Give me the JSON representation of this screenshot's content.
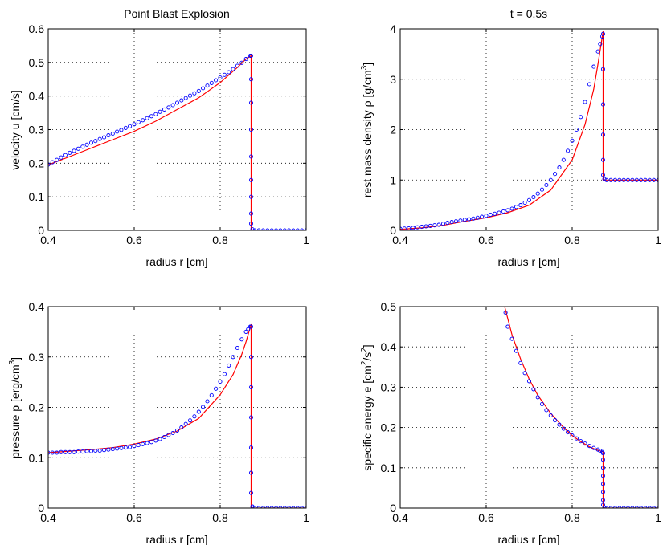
{
  "chart_data": [
    {
      "type": "line",
      "title": "Point Blast Explosion",
      "xlabel": "radius r [cm]",
      "ylabel": "velocity u [cm/s]",
      "xlim": [
        0.4,
        1.0
      ],
      "ylim": [
        0,
        0.6
      ],
      "xticks": [
        "0.4",
        "0.6",
        "0.8",
        "1"
      ],
      "yticks": [
        "0",
        "0.1",
        "0.2",
        "0.3",
        "0.4",
        "0.5",
        "0.6"
      ],
      "grid": true,
      "series": [
        {
          "style": "line",
          "color": "#ff0000",
          "x": [
            0.4,
            0.45,
            0.5,
            0.55,
            0.6,
            0.65,
            0.7,
            0.75,
            0.8,
            0.84,
            0.86,
            0.872,
            0.872,
            0.88,
            0.9,
            0.95,
            1.0
          ],
          "y": [
            0.195,
            0.22,
            0.245,
            0.27,
            0.295,
            0.325,
            0.36,
            0.395,
            0.44,
            0.485,
            0.51,
            0.52,
            0.0,
            0.0,
            0.0,
            0.0,
            0.0
          ]
        },
        {
          "style": "markers",
          "marker": "circle",
          "color": "#0000ff",
          "x": [
            0.4,
            0.41,
            0.42,
            0.43,
            0.44,
            0.45,
            0.46,
            0.47,
            0.48,
            0.49,
            0.5,
            0.51,
            0.52,
            0.53,
            0.54,
            0.55,
            0.56,
            0.57,
            0.58,
            0.59,
            0.6,
            0.61,
            0.62,
            0.63,
            0.64,
            0.65,
            0.66,
            0.67,
            0.68,
            0.69,
            0.7,
            0.71,
            0.72,
            0.73,
            0.74,
            0.75,
            0.76,
            0.77,
            0.78,
            0.79,
            0.8,
            0.81,
            0.82,
            0.83,
            0.84,
            0.85,
            0.86,
            0.87,
            0.872,
            0.872,
            0.872,
            0.872,
            0.872,
            0.872,
            0.872,
            0.872,
            0.872,
            0.875,
            0.88,
            0.89,
            0.9,
            0.91,
            0.92,
            0.93,
            0.94,
            0.95,
            0.96,
            0.97,
            0.98,
            0.99,
            1.0
          ],
          "y": [
            0.196,
            0.203,
            0.21,
            0.217,
            0.224,
            0.231,
            0.237,
            0.243,
            0.249,
            0.255,
            0.261,
            0.266,
            0.272,
            0.277,
            0.283,
            0.288,
            0.294,
            0.299,
            0.305,
            0.31,
            0.316,
            0.322,
            0.328,
            0.334,
            0.34,
            0.346,
            0.353,
            0.36,
            0.366,
            0.373,
            0.38,
            0.387,
            0.394,
            0.401,
            0.408,
            0.415,
            0.423,
            0.431,
            0.439,
            0.447,
            0.455,
            0.463,
            0.471,
            0.48,
            0.49,
            0.499,
            0.51,
            0.52,
            0.52,
            0.45,
            0.38,
            0.3,
            0.22,
            0.15,
            0.1,
            0.05,
            0.02,
            0.003,
            0.0,
            0.0,
            0.0,
            0.0,
            0.0,
            0.0,
            0.0,
            0.0,
            0.0,
            0.0,
            0.0,
            0.0,
            0.0
          ]
        }
      ]
    },
    {
      "type": "line",
      "title": "t = 0.5s",
      "xlabel": "radius r [cm]",
      "ylabel": "rest mass density ρ [g/cm3]",
      "xlim": [
        0.4,
        1.0
      ],
      "ylim": [
        0,
        4
      ],
      "xticks": [
        "0.4",
        "0.6",
        "0.8",
        "1"
      ],
      "yticks": [
        "0",
        "1",
        "2",
        "3",
        "4"
      ],
      "grid": true,
      "series": [
        {
          "style": "line",
          "color": "#ff0000",
          "x": [
            0.4,
            0.45,
            0.5,
            0.55,
            0.6,
            0.65,
            0.7,
            0.75,
            0.8,
            0.83,
            0.85,
            0.86,
            0.872,
            0.872,
            0.88,
            0.9,
            0.95,
            1.0
          ],
          "y": [
            0.02,
            0.05,
            0.1,
            0.18,
            0.25,
            0.35,
            0.5,
            0.8,
            1.4,
            2.1,
            2.8,
            3.3,
            3.95,
            1.0,
            1.0,
            1.0,
            1.0,
            1.0
          ]
        },
        {
          "style": "markers",
          "marker": "circle",
          "color": "#0000ff",
          "x": [
            0.4,
            0.41,
            0.42,
            0.43,
            0.44,
            0.45,
            0.46,
            0.47,
            0.48,
            0.49,
            0.5,
            0.51,
            0.52,
            0.53,
            0.54,
            0.55,
            0.56,
            0.57,
            0.58,
            0.59,
            0.6,
            0.61,
            0.62,
            0.63,
            0.64,
            0.65,
            0.66,
            0.67,
            0.68,
            0.69,
            0.7,
            0.71,
            0.72,
            0.73,
            0.74,
            0.75,
            0.76,
            0.77,
            0.78,
            0.79,
            0.8,
            0.81,
            0.82,
            0.83,
            0.84,
            0.85,
            0.86,
            0.865,
            0.87,
            0.872,
            0.872,
            0.872,
            0.872,
            0.872,
            0.872,
            0.875,
            0.88,
            0.89,
            0.9,
            0.91,
            0.92,
            0.93,
            0.94,
            0.95,
            0.96,
            0.97,
            0.98,
            0.99,
            1.0
          ],
          "y": [
            0.03,
            0.035,
            0.04,
            0.05,
            0.06,
            0.07,
            0.08,
            0.09,
            0.1,
            0.11,
            0.13,
            0.15,
            0.165,
            0.18,
            0.195,
            0.21,
            0.22,
            0.235,
            0.25,
            0.27,
            0.29,
            0.31,
            0.33,
            0.35,
            0.375,
            0.4,
            0.43,
            0.465,
            0.5,
            0.55,
            0.6,
            0.66,
            0.73,
            0.81,
            0.9,
            1.0,
            1.12,
            1.25,
            1.4,
            1.58,
            1.78,
            2.0,
            2.25,
            2.55,
            2.9,
            3.25,
            3.55,
            3.7,
            3.85,
            3.9,
            3.2,
            2.5,
            1.9,
            1.4,
            1.1,
            1.02,
            1.0,
            1.0,
            1.0,
            1.0,
            1.0,
            1.0,
            1.0,
            1.0,
            1.0,
            1.0,
            1.0,
            1.0,
            1.0
          ]
        }
      ]
    },
    {
      "type": "line",
      "title": "",
      "xlabel": "radius r [cm]",
      "ylabel": "pressure p [erg/cm3]",
      "xlim": [
        0.4,
        1.0
      ],
      "ylim": [
        0,
        0.4
      ],
      "xticks": [
        "0.4",
        "0.6",
        "0.8",
        "1"
      ],
      "yticks": [
        "0",
        "0.1",
        "0.2",
        "0.3",
        "0.4"
      ],
      "grid": true,
      "series": [
        {
          "style": "line",
          "color": "#ff0000",
          "x": [
            0.4,
            0.45,
            0.5,
            0.55,
            0.6,
            0.65,
            0.7,
            0.75,
            0.8,
            0.83,
            0.85,
            0.86,
            0.872,
            0.872,
            0.88,
            0.9,
            0.95,
            1.0
          ],
          "y": [
            0.11,
            0.113,
            0.116,
            0.12,
            0.127,
            0.137,
            0.153,
            0.178,
            0.225,
            0.265,
            0.305,
            0.33,
            0.365,
            0.0,
            0.0,
            0.0,
            0.0,
            0.0
          ]
        },
        {
          "style": "markers",
          "marker": "circle",
          "color": "#0000ff",
          "x": [
            0.4,
            0.41,
            0.42,
            0.43,
            0.44,
            0.45,
            0.46,
            0.47,
            0.48,
            0.49,
            0.5,
            0.51,
            0.52,
            0.53,
            0.54,
            0.55,
            0.56,
            0.57,
            0.58,
            0.59,
            0.6,
            0.61,
            0.62,
            0.63,
            0.64,
            0.65,
            0.66,
            0.67,
            0.68,
            0.69,
            0.7,
            0.71,
            0.72,
            0.73,
            0.74,
            0.75,
            0.76,
            0.77,
            0.78,
            0.79,
            0.8,
            0.81,
            0.82,
            0.83,
            0.84,
            0.85,
            0.86,
            0.865,
            0.87,
            0.872,
            0.872,
            0.872,
            0.872,
            0.872,
            0.872,
            0.872,
            0.875,
            0.88,
            0.89,
            0.9,
            0.91,
            0.92,
            0.93,
            0.94,
            0.95,
            0.96,
            0.97,
            0.98,
            0.99,
            1.0
          ],
          "y": [
            0.11,
            0.11,
            0.11,
            0.111,
            0.111,
            0.111,
            0.111,
            0.112,
            0.112,
            0.113,
            0.113,
            0.114,
            0.114,
            0.115,
            0.116,
            0.117,
            0.118,
            0.119,
            0.12,
            0.121,
            0.123,
            0.125,
            0.127,
            0.129,
            0.131,
            0.134,
            0.137,
            0.141,
            0.145,
            0.149,
            0.154,
            0.16,
            0.167,
            0.174,
            0.182,
            0.191,
            0.201,
            0.212,
            0.224,
            0.237,
            0.251,
            0.266,
            0.283,
            0.3,
            0.318,
            0.335,
            0.35,
            0.355,
            0.36,
            0.36,
            0.3,
            0.24,
            0.18,
            0.12,
            0.07,
            0.03,
            0.003,
            0.0,
            0.0,
            0.0,
            0.0,
            0.0,
            0.0,
            0.0,
            0.0,
            0.0,
            0.0,
            0.0,
            0.0,
            0.0
          ]
        }
      ]
    },
    {
      "type": "line",
      "title": "",
      "xlabel": "radius r [cm]",
      "ylabel": "specific energy e [cm2/s2]",
      "xlim": [
        0.4,
        1.0
      ],
      "ylim": [
        0,
        0.5
      ],
      "xticks": [
        "0.4",
        "0.6",
        "0.8",
        "1"
      ],
      "yticks": [
        "0",
        "0.1",
        "0.2",
        "0.3",
        "0.4",
        "0.5"
      ],
      "grid": true,
      "series": [
        {
          "style": "line",
          "color": "#ff0000",
          "x": [
            0.643,
            0.66,
            0.68,
            0.7,
            0.72,
            0.75,
            0.78,
            0.8,
            0.82,
            0.84,
            0.86,
            0.872,
            0.872,
            0.88,
            0.9,
            0.95,
            1.0
          ],
          "y": [
            0.5,
            0.43,
            0.37,
            0.32,
            0.28,
            0.235,
            0.2,
            0.18,
            0.165,
            0.152,
            0.143,
            0.14,
            0.0,
            0.0,
            0.0,
            0.0,
            0.0
          ]
        },
        {
          "style": "markers",
          "marker": "circle",
          "color": "#0000ff",
          "x": [
            0.645,
            0.65,
            0.66,
            0.67,
            0.68,
            0.69,
            0.7,
            0.71,
            0.72,
            0.73,
            0.74,
            0.75,
            0.76,
            0.77,
            0.78,
            0.79,
            0.8,
            0.81,
            0.82,
            0.83,
            0.84,
            0.85,
            0.86,
            0.865,
            0.87,
            0.872,
            0.872,
            0.872,
            0.872,
            0.872,
            0.872,
            0.872,
            0.872,
            0.875,
            0.88,
            0.89,
            0.9,
            0.91,
            0.92,
            0.93,
            0.94,
            0.95,
            0.96,
            0.97,
            0.98,
            0.99,
            1.0
          ],
          "y": [
            0.485,
            0.45,
            0.42,
            0.39,
            0.36,
            0.335,
            0.315,
            0.295,
            0.275,
            0.258,
            0.243,
            0.23,
            0.218,
            0.207,
            0.197,
            0.188,
            0.18,
            0.173,
            0.166,
            0.16,
            0.154,
            0.149,
            0.145,
            0.142,
            0.139,
            0.136,
            0.12,
            0.1,
            0.08,
            0.06,
            0.04,
            0.02,
            0.008,
            0.001,
            0.0,
            0.0,
            0.0,
            0.0,
            0.0,
            0.0,
            0.0,
            0.0,
            0.0,
            0.0,
            0.0,
            0.0,
            0.0
          ]
        }
      ]
    }
  ]
}
